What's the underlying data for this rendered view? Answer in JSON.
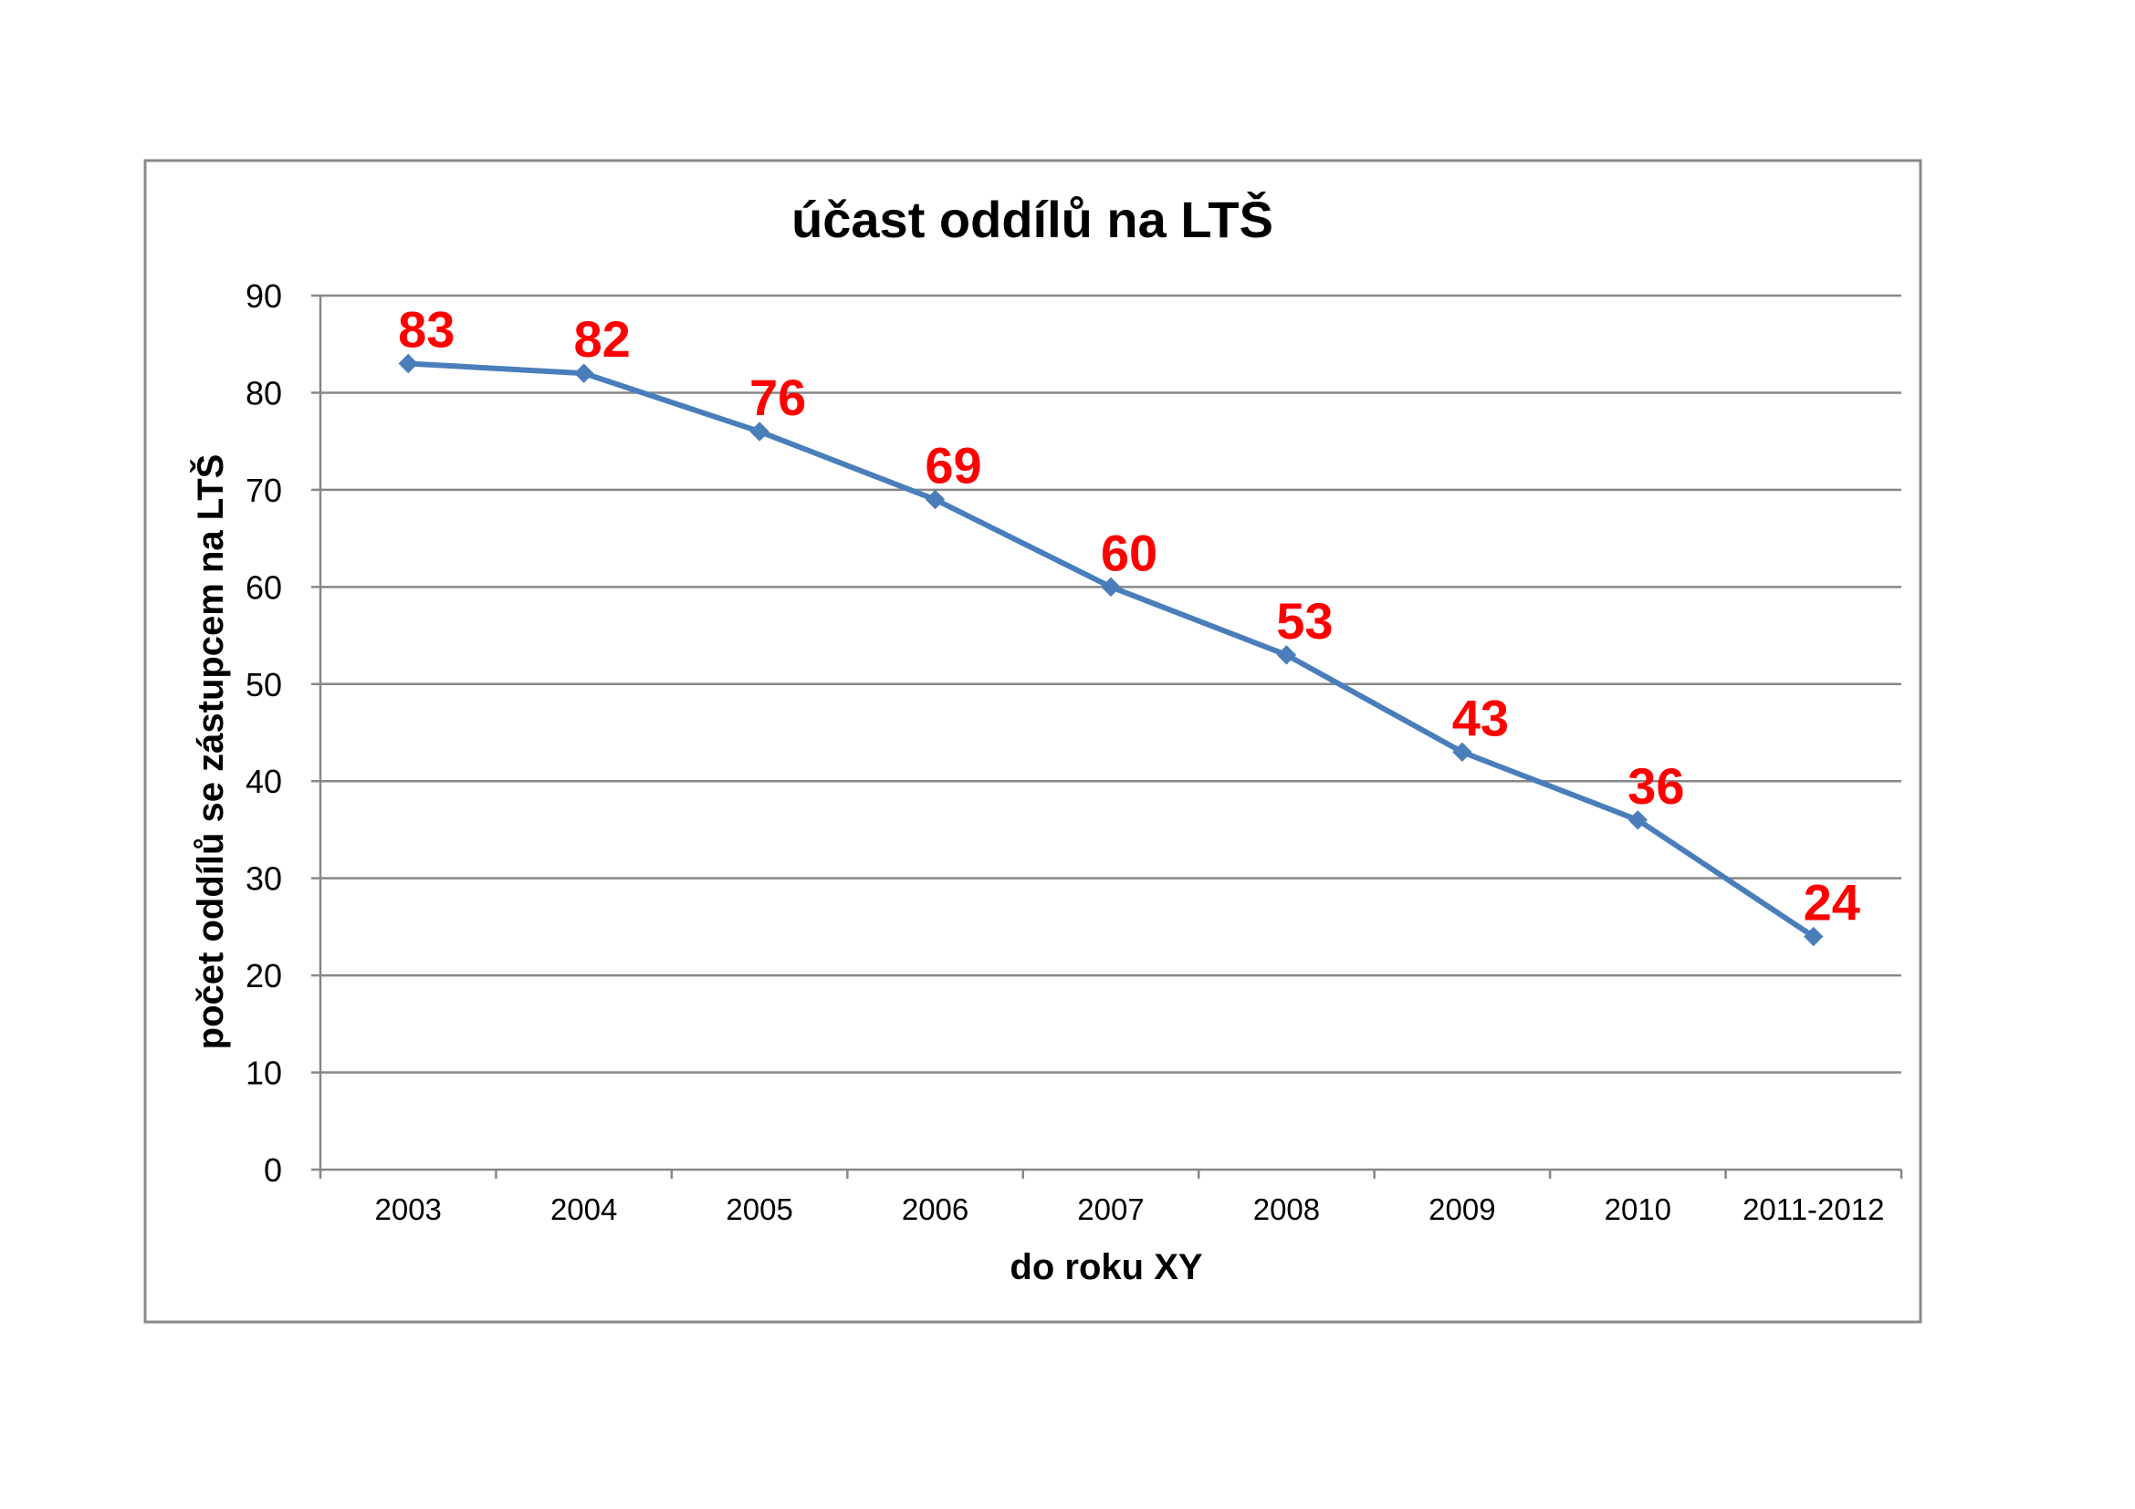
{
  "chart_data": {
    "type": "line",
    "title": "účast oddílů na LTŠ",
    "xlabel": "do roku XY",
    "ylabel": "počet oddílů se zástupcem na LTŠ",
    "categories": [
      "2003",
      "2004",
      "2005",
      "2006",
      "2007",
      "2008",
      "2009",
      "2010",
      "2011-2012"
    ],
    "series": [
      {
        "values": [
          83,
          82,
          76,
          69,
          60,
          53,
          43,
          36,
          24
        ]
      }
    ],
    "ylim": [
      0,
      90
    ],
    "yticks": [
      0,
      10,
      20,
      30,
      40,
      50,
      60,
      70,
      80,
      90
    ],
    "grid": true,
    "legend": "none",
    "data_labels": true,
    "colors": {
      "line": "#4a7ebb",
      "marker": "#4a7ebb",
      "data_label": "#ff0000"
    }
  }
}
